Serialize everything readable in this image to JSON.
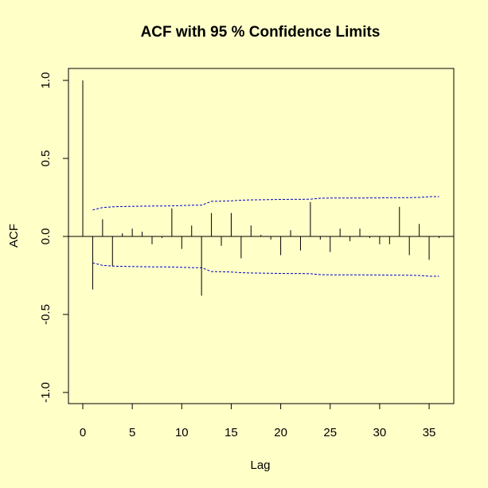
{
  "chart_data": {
    "type": "bar",
    "title": "ACF with 95 % Confidence Limits",
    "xlabel": "Lag",
    "ylabel": "ACF",
    "xlim": [
      0,
      37
    ],
    "ylim": [
      -1.05,
      1.05
    ],
    "x_ticks": [
      0,
      5,
      10,
      15,
      20,
      25,
      30,
      35
    ],
    "y_ticks": [
      -1.0,
      -0.5,
      0.0,
      0.5,
      1.0
    ],
    "x_tick_labels": [
      "0",
      "5",
      "10",
      "15",
      "20",
      "25",
      "30",
      "35"
    ],
    "y_tick_labels": [
      "-1.0",
      "-0.5",
      "0.0",
      "0.5",
      "1.0"
    ],
    "grid": false,
    "lags": [
      0,
      1,
      2,
      3,
      4,
      5,
      6,
      7,
      8,
      9,
      10,
      11,
      12,
      13,
      14,
      15,
      16,
      17,
      18,
      19,
      20,
      21,
      22,
      23,
      24,
      25,
      26,
      27,
      28,
      29,
      30,
      31,
      32,
      33,
      34,
      35,
      36
    ],
    "acf": [
      1.0,
      -0.34,
      0.11,
      -0.19,
      0.02,
      0.05,
      0.03,
      -0.05,
      -0.01,
      0.18,
      -0.08,
      0.07,
      -0.38,
      0.15,
      -0.06,
      0.15,
      -0.14,
      0.07,
      0.01,
      -0.02,
      -0.12,
      0.04,
      -0.09,
      0.22,
      -0.02,
      -0.1,
      0.05,
      -0.03,
      0.05,
      -0.01,
      -0.05,
      -0.05,
      0.19,
      -0.12,
      0.08,
      -0.15,
      -0.01
    ],
    "confidence_limits": {
      "lags": [
        1,
        2,
        3,
        4,
        5,
        6,
        7,
        8,
        9,
        10,
        11,
        12,
        13,
        14,
        15,
        16,
        17,
        18,
        19,
        20,
        21,
        22,
        23,
        24,
        25,
        26,
        27,
        28,
        29,
        30,
        31,
        32,
        33,
        34,
        35,
        36
      ],
      "upper": [
        0.17,
        0.185,
        0.19,
        0.192,
        0.193,
        0.194,
        0.195,
        0.195,
        0.196,
        0.198,
        0.2,
        0.2,
        0.225,
        0.226,
        0.228,
        0.232,
        0.234,
        0.235,
        0.236,
        0.237,
        0.238,
        0.238,
        0.239,
        0.245,
        0.246,
        0.246,
        0.246,
        0.246,
        0.247,
        0.247,
        0.248,
        0.248,
        0.249,
        0.25,
        0.255,
        0.255
      ],
      "lower": [
        -0.17,
        -0.185,
        -0.19,
        -0.192,
        -0.193,
        -0.194,
        -0.195,
        -0.195,
        -0.196,
        -0.198,
        -0.2,
        -0.2,
        -0.225,
        -0.226,
        -0.228,
        -0.232,
        -0.234,
        -0.235,
        -0.236,
        -0.237,
        -0.238,
        -0.238,
        -0.239,
        -0.245,
        -0.246,
        -0.246,
        -0.246,
        -0.246,
        -0.247,
        -0.247,
        -0.248,
        -0.248,
        -0.249,
        -0.25,
        -0.255,
        -0.255
      ],
      "color": "#0000cc"
    },
    "background_color": "#ffffc8",
    "bar_color": "#000000"
  }
}
